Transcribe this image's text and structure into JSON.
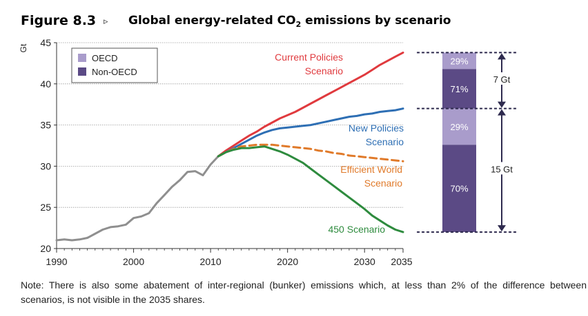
{
  "figure": {
    "number": "Figure 8.3",
    "marker": "▹",
    "title_pre": "Global energy-related CO",
    "title_sub": "2",
    "title_post": " emissions by scenario"
  },
  "chart_data": {
    "type": "line",
    "ylabel": "Gt",
    "ylim": [
      20,
      45
    ],
    "xlim": [
      1990,
      2035
    ],
    "y_ticks": [
      "20",
      "25",
      "30",
      "35",
      "40",
      "45"
    ],
    "x_ticks": [
      "1990",
      "2000",
      "2010",
      "2020",
      "2030",
      "2035"
    ],
    "grid": true,
    "legend": {
      "placement": "top-left",
      "items": [
        {
          "label": "OECD",
          "color": "#a99ccb"
        },
        {
          "label": "Non-OECD",
          "color": "#5b4a85"
        }
      ]
    },
    "series": [
      {
        "key": "historical",
        "color": "#8f8f8f",
        "dash": false,
        "x": [
          1990,
          1991,
          1992,
          1993,
          1994,
          1995,
          1996,
          1997,
          1998,
          1999,
          2000,
          2001,
          2002,
          2003,
          2004,
          2005,
          2006,
          2007,
          2008,
          2009,
          2010,
          2011
        ],
        "y": [
          21.0,
          21.1,
          21.0,
          21.1,
          21.3,
          21.8,
          22.3,
          22.6,
          22.7,
          22.9,
          23.7,
          23.9,
          24.3,
          25.5,
          26.5,
          27.5,
          28.3,
          29.3,
          29.4,
          28.9,
          30.2,
          31.2
        ]
      },
      {
        "name": "Current Policies Scenario",
        "label_lines": [
          "Current Policies",
          "Scenario"
        ],
        "color": "#e03a3e",
        "dash": false,
        "x": [
          2011,
          2012,
          2013,
          2014,
          2015,
          2016,
          2017,
          2018,
          2019,
          2020,
          2021,
          2022,
          2023,
          2024,
          2025,
          2026,
          2027,
          2028,
          2029,
          2030,
          2031,
          2032,
          2033,
          2034,
          2035
        ],
        "y": [
          31.2,
          31.9,
          32.5,
          33.1,
          33.7,
          34.2,
          34.8,
          35.3,
          35.8,
          36.2,
          36.6,
          37.1,
          37.6,
          38.1,
          38.6,
          39.1,
          39.6,
          40.1,
          40.6,
          41.1,
          41.7,
          42.3,
          42.8,
          43.3,
          43.8
        ]
      },
      {
        "name": "New Policies Scenario",
        "label_lines": [
          "New Policies",
          "Scenario"
        ],
        "color": "#2e6fb4",
        "dash": false,
        "x": [
          2011,
          2012,
          2013,
          2014,
          2015,
          2016,
          2017,
          2018,
          2019,
          2020,
          2021,
          2022,
          2023,
          2024,
          2025,
          2026,
          2027,
          2028,
          2029,
          2030,
          2031,
          2032,
          2033,
          2034,
          2035
        ],
        "y": [
          31.2,
          31.7,
          32.2,
          32.7,
          33.2,
          33.7,
          34.1,
          34.4,
          34.6,
          34.7,
          34.8,
          34.9,
          35.0,
          35.2,
          35.4,
          35.6,
          35.8,
          36.0,
          36.1,
          36.3,
          36.4,
          36.6,
          36.7,
          36.8,
          37.0
        ]
      },
      {
        "name": "Efficient World Scenario",
        "label_lines": [
          "Efficient World",
          "Scenario"
        ],
        "color": "#e07a2a",
        "dash": true,
        "x": [
          2011,
          2012,
          2013,
          2014,
          2015,
          2016,
          2017,
          2018,
          2019,
          2020,
          2021,
          2022,
          2023,
          2024,
          2025,
          2026,
          2027,
          2028,
          2029,
          2030,
          2031,
          2032,
          2033,
          2034,
          2035
        ],
        "y": [
          31.2,
          31.7,
          32.1,
          32.4,
          32.5,
          32.6,
          32.6,
          32.6,
          32.5,
          32.4,
          32.3,
          32.2,
          32.1,
          31.9,
          31.8,
          31.6,
          31.5,
          31.3,
          31.2,
          31.1,
          31.0,
          30.9,
          30.8,
          30.7,
          30.6
        ]
      },
      {
        "name": "450 Scenario",
        "label_lines": [
          "450 Scenario"
        ],
        "color": "#2e8b3e",
        "dash": false,
        "x": [
          2011,
          2012,
          2013,
          2014,
          2015,
          2016,
          2017,
          2018,
          2019,
          2020,
          2021,
          2022,
          2023,
          2024,
          2025,
          2026,
          2027,
          2028,
          2029,
          2030,
          2031,
          2032,
          2033,
          2034,
          2035
        ],
        "y": [
          31.2,
          31.7,
          32.0,
          32.2,
          32.2,
          32.3,
          32.4,
          32.1,
          31.8,
          31.4,
          30.9,
          30.4,
          29.7,
          29.0,
          28.3,
          27.6,
          26.9,
          26.2,
          25.5,
          24.8,
          24.0,
          23.4,
          22.8,
          22.3,
          22.0
        ]
      }
    ],
    "side_bar": {
      "ylim_reference": [
        20,
        45
      ],
      "segments": [
        {
          "from": 37.0,
          "to": 43.8,
          "oecd_share": "29%",
          "non_oecd_share": "71%",
          "oecd_value": 2.0,
          "non_oecd_value": 4.8
        },
        {
          "from": 22.0,
          "to": 37.0,
          "oecd_share": "29%",
          "non_oecd_share": "70%",
          "oecd_value": 4.4,
          "non_oecd_value": 10.6
        }
      ],
      "gaps": [
        "7 Gt",
        "15 Gt"
      ]
    }
  },
  "note": "Note: There is also some abatement of inter-regional (bunker) emissions which, at less than 2% of the difference between scenarios, is not visible in the 2035 shares."
}
